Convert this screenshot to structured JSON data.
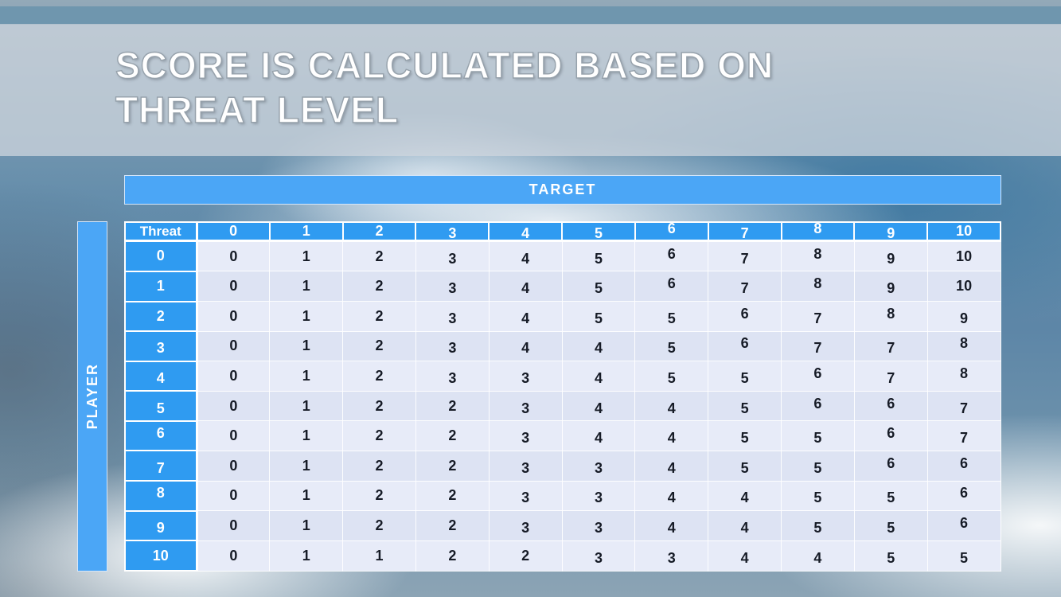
{
  "slide": {
    "title_line1": "SCORE IS CALCULATED BASED ON",
    "title_line2": "THREAT LEVEL"
  },
  "axes": {
    "target_label": "TARGET",
    "player_label": "PLAYER"
  },
  "chart_data": {
    "type": "table",
    "title": "Score matrix by player threat level vs target threat level",
    "corner_label": "Threat",
    "col_headers": [
      "0",
      "1",
      "2",
      "3",
      "4",
      "5",
      "6",
      "7",
      "8",
      "9",
      "10"
    ],
    "row_headers": [
      "0",
      "1",
      "2",
      "3",
      "4",
      "5",
      "6",
      "7",
      "8",
      "9",
      "10"
    ],
    "rows": [
      [
        0,
        1,
        2,
        3,
        4,
        5,
        6,
        7,
        8,
        9,
        10
      ],
      [
        0,
        1,
        2,
        3,
        4,
        5,
        6,
        7,
        8,
        9,
        10
      ],
      [
        0,
        1,
        2,
        3,
        4,
        5,
        5,
        6,
        7,
        8,
        9
      ],
      [
        0,
        1,
        2,
        3,
        4,
        4,
        5,
        6,
        7,
        7,
        8
      ],
      [
        0,
        1,
        2,
        3,
        3,
        4,
        5,
        5,
        6,
        7,
        8
      ],
      [
        0,
        1,
        2,
        2,
        3,
        4,
        4,
        5,
        6,
        6,
        7
      ],
      [
        0,
        1,
        2,
        2,
        3,
        4,
        4,
        5,
        5,
        6,
        7
      ],
      [
        0,
        1,
        2,
        2,
        3,
        3,
        4,
        5,
        5,
        6,
        6
      ],
      [
        0,
        1,
        2,
        2,
        3,
        3,
        4,
        4,
        5,
        5,
        6
      ],
      [
        0,
        1,
        2,
        2,
        3,
        3,
        4,
        4,
        5,
        5,
        6
      ],
      [
        0,
        1,
        1,
        2,
        2,
        3,
        3,
        4,
        4,
        5,
        5
      ]
    ]
  },
  "colors": {
    "top_strip_blue": "#6f96ae",
    "title_band_gray": "#cfd6dd",
    "axis_band_blue": "#4ba6f6",
    "table_header_blue": "#2f9bf1",
    "row_band_light": "#e7ebf8",
    "row_band_dark": "#dde3f3",
    "cell_text": "#161b26"
  }
}
